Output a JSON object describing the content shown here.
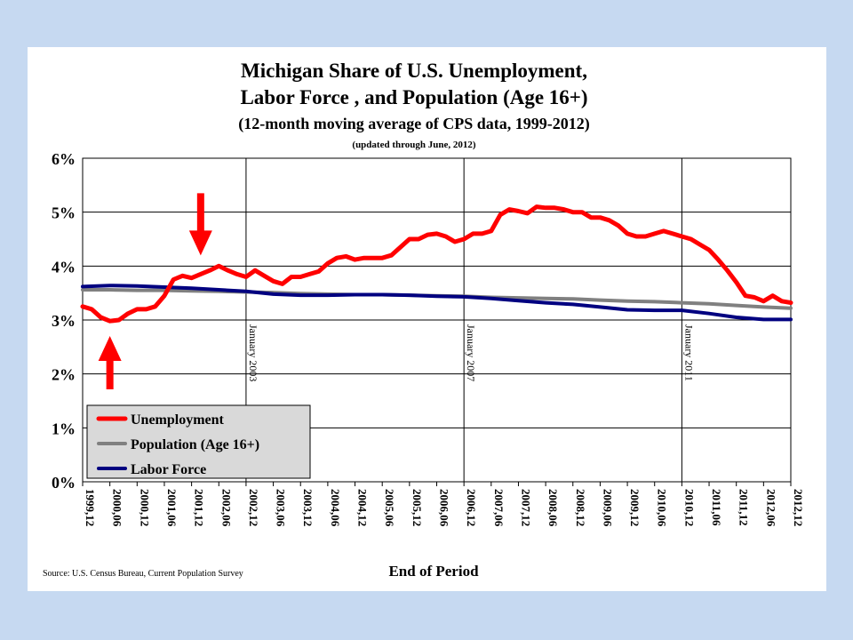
{
  "colors": {
    "background": "#c6d9f1",
    "unemployment": "#ff0000",
    "population": "#808080",
    "labor_force": "#000080",
    "arrow": "#ff0000",
    "legend_bg": "#d9d9d9"
  },
  "footer": {
    "source": "Source: U.S. Census Bureau, Current Population Survey"
  },
  "chart_data": {
    "type": "line",
    "title_lines": [
      "Michigan Share of U.S. Unemployment,",
      "Labor Force , and Population (Age 16+)",
      "(12-month moving average of CPS data, 1999-2012)"
    ],
    "subtitle": "(updated through June, 2012)",
    "xlabel": "End of Period",
    "ylabel": "",
    "ylim": [
      0,
      6
    ],
    "ytick_labels": [
      "0%",
      "1%",
      "2%",
      "3%",
      "4%",
      "5%",
      "6%"
    ],
    "x_range": [
      "1999,12",
      "2012,12"
    ],
    "xtick_labels": [
      "1999,12",
      "2000,06",
      "2000,12",
      "2001,06",
      "2001,12",
      "2002,06",
      "2002,12",
      "2003,06",
      "2003,12",
      "2004,06",
      "2004,12",
      "2005,06",
      "2005,12",
      "2006,06",
      "2006,12",
      "2007,06",
      "2007,12",
      "2008,06",
      "2008,12",
      "2009,06",
      "2009,12",
      "2010,06",
      "2010,12",
      "2011,06",
      "2011,12",
      "2012,06",
      "2012,12"
    ],
    "grid": true,
    "legend_position": "bottom-left",
    "markers": [
      {
        "date": "2002,12",
        "label": "January 2003"
      },
      {
        "date": "2006,12",
        "label": "January 2007"
      },
      {
        "date": "2010,12",
        "label": "January 2011"
      }
    ],
    "annotations": [
      {
        "type": "arrow-down",
        "date": "2002,02",
        "value": 4.0
      },
      {
        "type": "arrow-up",
        "date": "2000,06",
        "value": 3.0
      }
    ],
    "series": [
      {
        "name": "Unemployment",
        "color": "#ff0000",
        "points": [
          [
            "1999,12",
            3.25
          ],
          [
            "2000,02",
            3.2
          ],
          [
            "2000,04",
            3.05
          ],
          [
            "2000,06",
            2.98
          ],
          [
            "2000,08",
            3.0
          ],
          [
            "2000,10",
            3.12
          ],
          [
            "2000,12",
            3.2
          ],
          [
            "2001,02",
            3.2
          ],
          [
            "2001,04",
            3.25
          ],
          [
            "2001,06",
            3.45
          ],
          [
            "2001,08",
            3.75
          ],
          [
            "2001,10",
            3.82
          ],
          [
            "2001,12",
            3.78
          ],
          [
            "2002,02",
            3.85
          ],
          [
            "2002,04",
            3.92
          ],
          [
            "2002,06",
            4.0
          ],
          [
            "2002,08",
            3.92
          ],
          [
            "2002,10",
            3.85
          ],
          [
            "2002,12",
            3.8
          ],
          [
            "2003,02",
            3.92
          ],
          [
            "2003,04",
            3.82
          ],
          [
            "2003,06",
            3.72
          ],
          [
            "2003,08",
            3.67
          ],
          [
            "2003,10",
            3.8
          ],
          [
            "2003,12",
            3.8
          ],
          [
            "2004,02",
            3.85
          ],
          [
            "2004,04",
            3.9
          ],
          [
            "2004,06",
            4.05
          ],
          [
            "2004,08",
            4.15
          ],
          [
            "2004,10",
            4.18
          ],
          [
            "2004,12",
            4.12
          ],
          [
            "2005,02",
            4.15
          ],
          [
            "2005,04",
            4.15
          ],
          [
            "2005,06",
            4.15
          ],
          [
            "2005,08",
            4.2
          ],
          [
            "2005,10",
            4.35
          ],
          [
            "2005,12",
            4.5
          ],
          [
            "2006,02",
            4.5
          ],
          [
            "2006,04",
            4.58
          ],
          [
            "2006,06",
            4.6
          ],
          [
            "2006,08",
            4.55
          ],
          [
            "2006,10",
            4.45
          ],
          [
            "2006,12",
            4.5
          ],
          [
            "2007,02",
            4.6
          ],
          [
            "2007,04",
            4.6
          ],
          [
            "2007,06",
            4.65
          ],
          [
            "2007,08",
            4.95
          ],
          [
            "2007,10",
            5.05
          ],
          [
            "2007,12",
            5.02
          ],
          [
            "2008,02",
            4.98
          ],
          [
            "2008,04",
            5.1
          ],
          [
            "2008,06",
            5.08
          ],
          [
            "2008,08",
            5.08
          ],
          [
            "2008,10",
            5.05
          ],
          [
            "2008,12",
            5.0
          ],
          [
            "2009,02",
            5.0
          ],
          [
            "2009,04",
            4.9
          ],
          [
            "2009,06",
            4.9
          ],
          [
            "2009,08",
            4.85
          ],
          [
            "2009,10",
            4.75
          ],
          [
            "2009,12",
            4.6
          ],
          [
            "2010,02",
            4.55
          ],
          [
            "2010,04",
            4.55
          ],
          [
            "2010,06",
            4.6
          ],
          [
            "2010,08",
            4.65
          ],
          [
            "2010,10",
            4.6
          ],
          [
            "2010,12",
            4.55
          ],
          [
            "2011,02",
            4.5
          ],
          [
            "2011,04",
            4.4
          ],
          [
            "2011,06",
            4.3
          ],
          [
            "2011,08",
            4.12
          ],
          [
            "2011,10",
            3.92
          ],
          [
            "2011,12",
            3.7
          ],
          [
            "2012,02",
            3.45
          ],
          [
            "2012,04",
            3.42
          ],
          [
            "2012,06",
            3.35
          ],
          [
            "2012,08",
            3.45
          ],
          [
            "2012,10",
            3.35
          ],
          [
            "2012,12",
            3.32
          ]
        ]
      },
      {
        "name": "Population (Age 16+)",
        "color": "#808080",
        "points": [
          [
            "1999,12",
            3.56
          ],
          [
            "2000,06",
            3.56
          ],
          [
            "2000,12",
            3.55
          ],
          [
            "2001,06",
            3.55
          ],
          [
            "2001,12",
            3.54
          ],
          [
            "2002,06",
            3.53
          ],
          [
            "2002,12",
            3.52
          ],
          [
            "2003,06",
            3.51
          ],
          [
            "2003,12",
            3.49
          ],
          [
            "2004,06",
            3.48
          ],
          [
            "2004,12",
            3.47
          ],
          [
            "2005,06",
            3.47
          ],
          [
            "2005,12",
            3.46
          ],
          [
            "2006,06",
            3.45
          ],
          [
            "2006,12",
            3.44
          ],
          [
            "2007,06",
            3.42
          ],
          [
            "2007,12",
            3.41
          ],
          [
            "2008,06",
            3.4
          ],
          [
            "2008,12",
            3.39
          ],
          [
            "2009,06",
            3.37
          ],
          [
            "2009,12",
            3.35
          ],
          [
            "2010,06",
            3.34
          ],
          [
            "2010,12",
            3.32
          ],
          [
            "2011,06",
            3.3
          ],
          [
            "2011,12",
            3.27
          ],
          [
            "2012,06",
            3.24
          ],
          [
            "2012,12",
            3.22
          ]
        ]
      },
      {
        "name": "Labor Force",
        "color": "#000080",
        "points": [
          [
            "1999,12",
            3.62
          ],
          [
            "2000,06",
            3.64
          ],
          [
            "2000,12",
            3.63
          ],
          [
            "2001,06",
            3.61
          ],
          [
            "2001,12",
            3.59
          ],
          [
            "2002,06",
            3.56
          ],
          [
            "2002,12",
            3.53
          ],
          [
            "2003,06",
            3.48
          ],
          [
            "2003,12",
            3.46
          ],
          [
            "2004,06",
            3.46
          ],
          [
            "2004,12",
            3.47
          ],
          [
            "2005,06",
            3.47
          ],
          [
            "2005,12",
            3.46
          ],
          [
            "2006,06",
            3.44
          ],
          [
            "2006,12",
            3.43
          ],
          [
            "2007,06",
            3.4
          ],
          [
            "2007,12",
            3.36
          ],
          [
            "2008,06",
            3.32
          ],
          [
            "2008,12",
            3.29
          ],
          [
            "2009,06",
            3.24
          ],
          [
            "2009,12",
            3.19
          ],
          [
            "2010,06",
            3.18
          ],
          [
            "2010,12",
            3.18
          ],
          [
            "2011,06",
            3.12
          ],
          [
            "2011,12",
            3.05
          ],
          [
            "2012,06",
            3.01
          ],
          [
            "2012,12",
            3.01
          ]
        ]
      }
    ]
  }
}
